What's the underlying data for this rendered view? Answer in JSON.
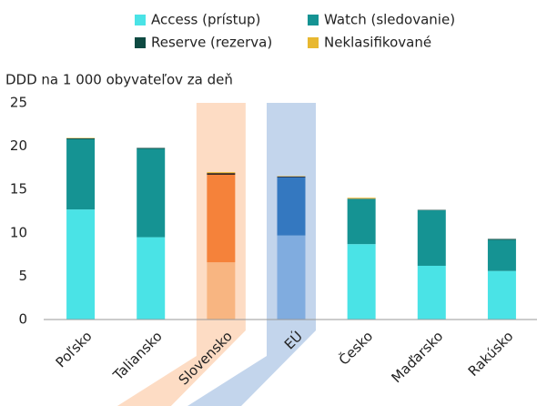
{
  "chart_data": {
    "type": "bar",
    "stacked": true,
    "y_axis_title": "DDD na 1 000 obyvateľov za deň",
    "categories": [
      "Poľsko",
      "Taliansko",
      "Slovensko",
      "EÚ",
      "Česko",
      "Maďarsko",
      "Rakúsko"
    ],
    "series": [
      {
        "name": "Access (prístup)",
        "color": "#4ae3e6",
        "values": [
          12.7,
          9.5,
          6.6,
          9.7,
          8.7,
          6.2,
          5.6
        ]
      },
      {
        "name": "Watch (sledovanie)",
        "color": "#159393",
        "values": [
          8.1,
          10.2,
          10.1,
          6.7,
          5.2,
          6.4,
          3.6
        ]
      },
      {
        "name": "Reserve (rezerva)",
        "color": "#0e4a42",
        "values": [
          0.1,
          0.1,
          0.2,
          0.1,
          0.05,
          0.05,
          0.1
        ]
      },
      {
        "name": "Neklasifikované",
        "color": "#e8b830",
        "values": [
          0.05,
          0,
          0.1,
          0.05,
          0.1,
          0,
          0
        ]
      }
    ],
    "highlights": [
      {
        "index": 2,
        "band_color": "#fddcc4",
        "colors": [
          "#f8b581",
          "#f5823a",
          "#3a2a20",
          "#e8b830"
        ]
      },
      {
        "index": 3,
        "band_color": "#c3d5ec",
        "colors": [
          "#80acdf",
          "#3478c0",
          "#1c2d4a",
          "#e8b830"
        ]
      }
    ],
    "ylim": [
      0,
      25
    ],
    "yticks": [
      0,
      5,
      10,
      15,
      20,
      25
    ],
    "grid": false
  }
}
